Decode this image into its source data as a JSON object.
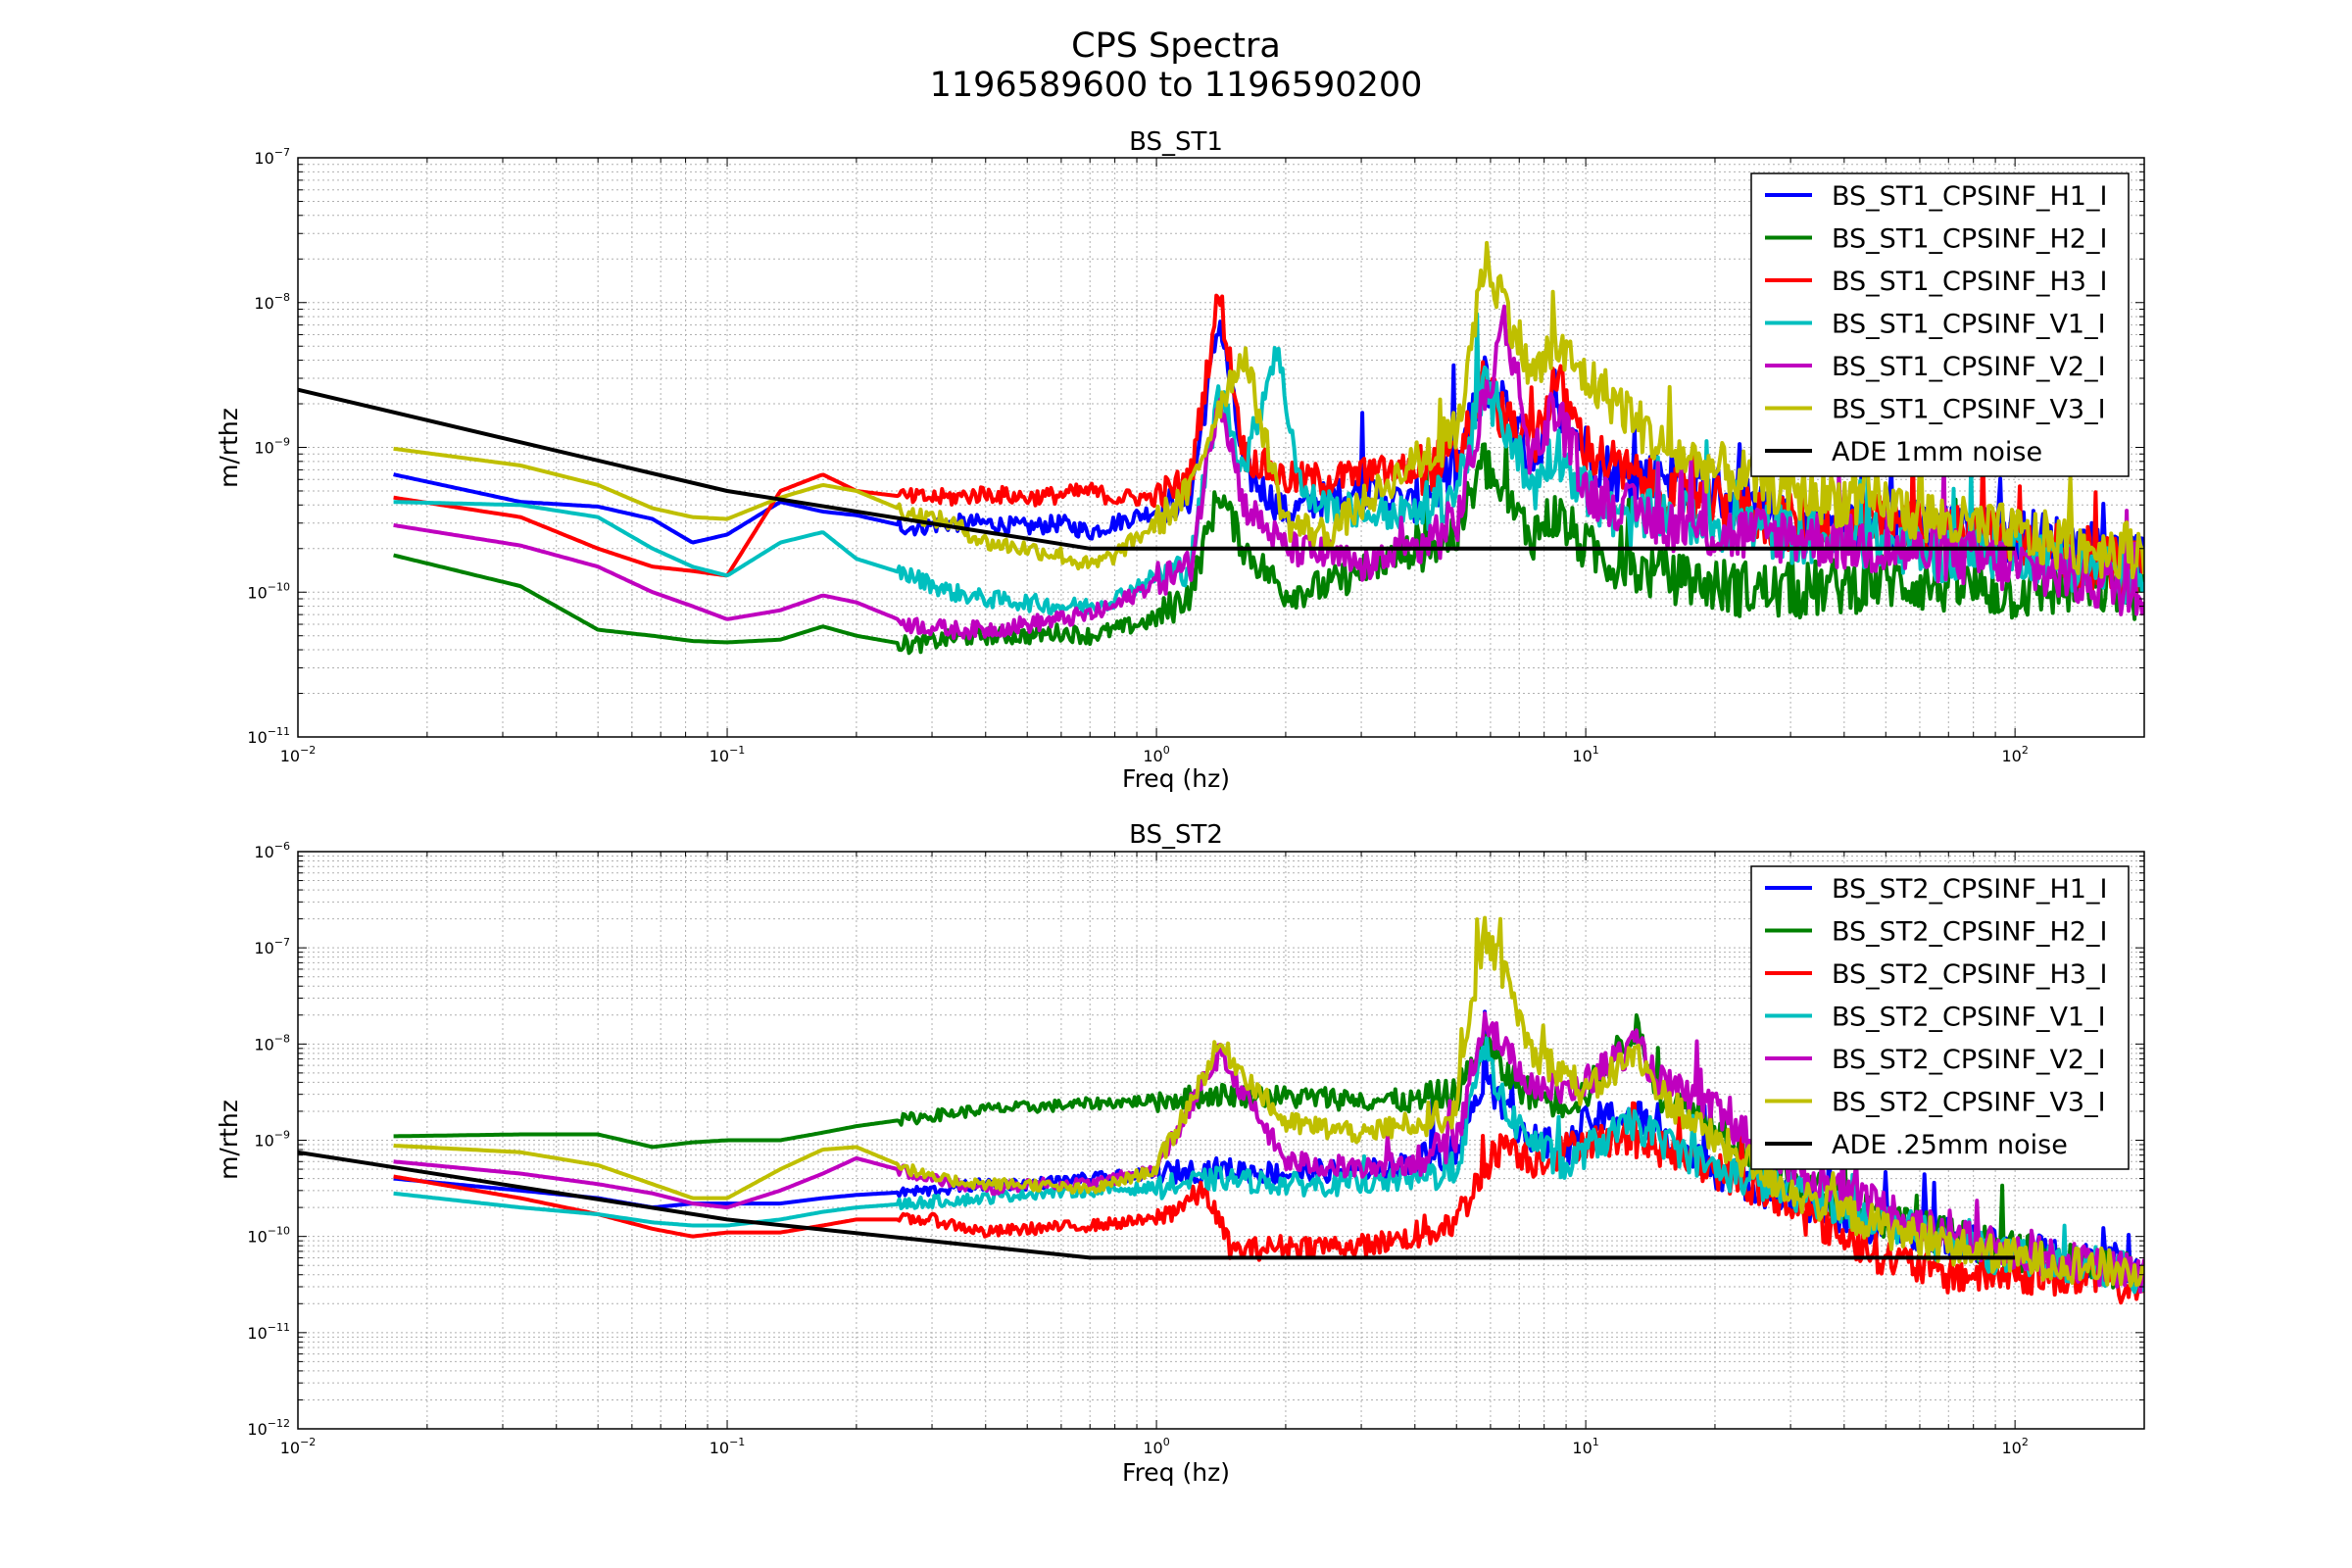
{
  "figure": {
    "title_line1": "CPS Spectra",
    "title_line2": "1196589600 to 1196590200"
  },
  "chart_data": [
    {
      "type": "line",
      "title": "BS_ST1",
      "xlabel": "Freq (hz)",
      "ylabel": "m/rthz",
      "xscale": "log",
      "yscale": "log",
      "xlim": [
        0.01,
        200
      ],
      "ylim": [
        1e-11,
        1e-07
      ],
      "grid": true,
      "legend_position": "upper right",
      "xticks": [
        "10^-2",
        "10^-1",
        "10^0",
        "10^1",
        "10^2"
      ],
      "yticks": [
        "10^-11",
        "10^-10",
        "10^-9",
        "10^-8",
        "10^-7"
      ],
      "series": [
        {
          "name": "BS_ST1_CPSINF_H1_I",
          "color": "#0000ff",
          "x": [
            0.0167,
            0.033,
            0.05,
            0.067,
            0.083,
            0.1,
            0.133,
            0.167,
            0.2,
            0.267,
            0.333,
            0.4,
            0.5,
            0.6,
            0.7,
            0.8,
            1.0,
            1.2,
            1.4,
            1.6,
            2.0,
            2.5,
            3,
            4,
            5,
            5.8,
            6.5,
            7.5,
            8.5,
            10,
            12,
            15,
            20,
            30,
            50,
            70,
            100,
            150,
            200
          ],
          "y": [
            6.5e-10,
            4.2e-10,
            3.9e-10,
            3.2e-10,
            2.2e-10,
            2.5e-10,
            4.2e-10,
            3.6e-10,
            3.4e-10,
            2.8e-10,
            3e-10,
            3e-10,
            2.8e-10,
            3e-10,
            2.6e-10,
            3e-10,
            3.7e-10,
            4.5e-10,
            8e-09,
            7e-10,
            3.5e-10,
            4.5e-10,
            5e-10,
            4e-10,
            7e-10,
            3e-09,
            2e-09,
            8e-10,
            2e-09,
            1e-09,
            6e-10,
            7e-10,
            5e-10,
            2.8e-10,
            3e-10,
            2.5e-10,
            2.5e-10,
            2e-10,
            1.5e-10
          ]
        },
        {
          "name": "BS_ST1_CPSINF_H2_I",
          "color": "#008000",
          "x": [
            0.0167,
            0.033,
            0.05,
            0.067,
            0.083,
            0.1,
            0.133,
            0.167,
            0.2,
            0.267,
            0.333,
            0.4,
            0.5,
            0.6,
            0.7,
            0.8,
            1.0,
            1.2,
            1.4,
            1.6,
            2.0,
            2.5,
            3,
            4,
            5,
            5.8,
            6.5,
            7.5,
            8.5,
            10,
            12,
            15,
            20,
            30,
            50,
            70,
            100,
            150,
            200
          ],
          "y": [
            1.8e-10,
            1.1e-10,
            5.5e-11,
            5e-11,
            4.6e-11,
            4.5e-11,
            4.7e-11,
            5.8e-11,
            5e-11,
            4.3e-11,
            4.8e-11,
            5e-11,
            5e-11,
            5.3e-11,
            5e-11,
            5.5e-11,
            6.5e-11,
            1e-10,
            5e-10,
            2e-10,
            1e-10,
            1.1e-10,
            1.4e-10,
            2e-10,
            2.5e-10,
            8e-10,
            4e-10,
            2.5e-10,
            3.5e-10,
            2e-10,
            1.5e-10,
            1.3e-10,
            1.1e-10,
            1e-10,
            1.2e-10,
            1.1e-10,
            1e-10,
            1.1e-10,
            1e-10
          ]
        },
        {
          "name": "BS_ST1_CPSINF_H3_I",
          "color": "#ff0000",
          "x": [
            0.0167,
            0.033,
            0.05,
            0.067,
            0.083,
            0.1,
            0.133,
            0.167,
            0.2,
            0.267,
            0.333,
            0.4,
            0.5,
            0.6,
            0.7,
            0.8,
            1.0,
            1.2,
            1.4,
            1.6,
            2.0,
            2.5,
            3,
            4,
            5,
            5.8,
            6.5,
            7.5,
            8.5,
            10,
            12,
            15,
            20,
            30,
            50,
            70,
            100,
            150,
            200
          ],
          "y": [
            4.5e-10,
            3.3e-10,
            2e-10,
            1.5e-10,
            1.4e-10,
            1.3e-10,
            5e-10,
            6.5e-10,
            5e-10,
            4.5e-10,
            4.5e-10,
            4.8e-10,
            4.5e-10,
            4.7e-10,
            5e-10,
            4.5e-10,
            4.5e-10,
            6e-10,
            1.2e-08,
            9e-10,
            6e-10,
            6e-10,
            6.5e-10,
            7e-10,
            8e-10,
            3e-09,
            1.5e-09,
            1e-09,
            3e-09,
            1e-09,
            7e-10,
            5e-10,
            4e-10,
            3e-10,
            3e-10,
            2.5e-10,
            2.5e-10,
            1.5e-10,
            1.5e-10
          ]
        },
        {
          "name": "BS_ST1_CPSINF_V1_I",
          "color": "#00bfbf",
          "x": [
            0.0167,
            0.033,
            0.05,
            0.067,
            0.083,
            0.1,
            0.133,
            0.167,
            0.2,
            0.267,
            0.333,
            0.4,
            0.5,
            0.6,
            0.7,
            0.8,
            1.0,
            1.2,
            1.4,
            1.6,
            1.9,
            2.2,
            2.5,
            3,
            4,
            5,
            5.8,
            6.5,
            7.5,
            8.5,
            10,
            12,
            15,
            20,
            30,
            50,
            70,
            100,
            150,
            200
          ],
          "y": [
            4.2e-10,
            4e-10,
            3.3e-10,
            2e-10,
            1.5e-10,
            1.3e-10,
            2.2e-10,
            2.6e-10,
            1.7e-10,
            1.3e-10,
            1e-10,
            9e-11,
            8.5e-11,
            8e-11,
            8e-11,
            9e-11,
            1.3e-10,
            1.5e-10,
            2.5e-09,
            7e-10,
            5e-09,
            4.5e-10,
            4e-10,
            3.5e-10,
            3.5e-10,
            5e-10,
            2.5e-09,
            1.5e-09,
            5e-10,
            1e-09,
            5e-10,
            3e-10,
            3.5e-10,
            3e-10,
            2.5e-10,
            2.2e-10,
            1.8e-10,
            2e-10,
            1.5e-10,
            1.2e-10
          ]
        },
        {
          "name": "BS_ST1_CPSINF_V2_I",
          "color": "#bf00bf",
          "x": [
            0.0167,
            0.033,
            0.05,
            0.067,
            0.083,
            0.1,
            0.133,
            0.167,
            0.2,
            0.267,
            0.333,
            0.4,
            0.5,
            0.6,
            0.7,
            0.8,
            1.0,
            1.2,
            1.4,
            1.6,
            2.0,
            2.5,
            3,
            4,
            5,
            5.8,
            6.5,
            7.5,
            8.5,
            10,
            12,
            15,
            20,
            30,
            50,
            70,
            100,
            150,
            200
          ],
          "y": [
            2.9e-10,
            2.1e-10,
            1.5e-10,
            1e-10,
            8e-11,
            6.5e-11,
            7.5e-11,
            9.5e-11,
            8.5e-11,
            6e-11,
            5.5e-11,
            5.5e-11,
            6e-11,
            6.5e-11,
            7e-11,
            8e-11,
            1.2e-10,
            1.5e-10,
            2.5e-09,
            4e-10,
            2e-10,
            1.8e-10,
            1.5e-10,
            2e-10,
            3e-10,
            2e-09,
            8e-09,
            8e-10,
            2e-09,
            5e-10,
            4e-10,
            3e-10,
            2.5e-10,
            2.5e-10,
            2e-10,
            1.8e-10,
            1.5e-10,
            1.2e-10,
            1e-10
          ]
        },
        {
          "name": "BS_ST1_CPSINF_V3_I",
          "color": "#bfbf00",
          "x": [
            0.0167,
            0.033,
            0.05,
            0.067,
            0.083,
            0.1,
            0.133,
            0.167,
            0.2,
            0.267,
            0.333,
            0.4,
            0.5,
            0.6,
            0.7,
            0.8,
            1.0,
            1.2,
            1.4,
            1.6,
            2.0,
            2.5,
            3,
            4,
            5,
            5.8,
            6.5,
            7.5,
            8.5,
            10,
            12,
            15,
            20,
            30,
            50,
            70,
            100,
            150,
            200
          ],
          "y": [
            9.8e-10,
            7.5e-10,
            5.5e-10,
            3.8e-10,
            3.3e-10,
            3.2e-10,
            4.5e-10,
            5.5e-10,
            5e-10,
            3.5e-10,
            3e-10,
            2.2e-10,
            2e-10,
            1.8e-10,
            1.5e-10,
            1.8e-10,
            3e-10,
            5e-10,
            2e-09,
            4.5e-09,
            3e-10,
            2.5e-10,
            4e-10,
            8e-10,
            1.2e-09,
            2e-08,
            1e-08,
            3e-09,
            5e-09,
            3e-09,
            2e-09,
            1e-09,
            7e-10,
            5e-10,
            4e-10,
            3e-10,
            2.5e-10,
            2e-10,
            2e-10
          ]
        },
        {
          "name": "ADE 1mm noise",
          "color": "#000000",
          "x": [
            0.01,
            0.1,
            0.7,
            100
          ],
          "y": [
            2.5e-09,
            5e-10,
            2e-10,
            2e-10
          ]
        }
      ]
    },
    {
      "type": "line",
      "title": "BS_ST2",
      "xlabel": "Freq (hz)",
      "ylabel": "m/rthz",
      "xscale": "log",
      "yscale": "log",
      "xlim": [
        0.01,
        200
      ],
      "ylim": [
        1e-12,
        1e-06
      ],
      "grid": true,
      "legend_position": "upper right",
      "xticks": [
        "10^-2",
        "10^-1",
        "10^0",
        "10^1",
        "10^2"
      ],
      "yticks": [
        "10^-12",
        "10^-11",
        "10^-10",
        "10^-9",
        "10^-8",
        "10^-7",
        "10^-6"
      ],
      "series": [
        {
          "name": "BS_ST2_CPSINF_H1_I",
          "color": "#0000ff",
          "x": [
            0.0167,
            0.033,
            0.05,
            0.067,
            0.083,
            0.1,
            0.133,
            0.167,
            0.2,
            0.3,
            0.4,
            0.5,
            0.7,
            1.0,
            1.4,
            2.0,
            3,
            4,
            5,
            5.8,
            6.5,
            7.5,
            9,
            10,
            13,
            15,
            20,
            30,
            50,
            70,
            100,
            150,
            200
          ],
          "y": [
            4e-10,
            3e-10,
            2.5e-10,
            2e-10,
            2.2e-10,
            2.2e-10,
            2.2e-10,
            2.5e-10,
            2.7e-10,
            3e-10,
            3.5e-10,
            3.5e-10,
            4e-10,
            4.5e-10,
            5e-10,
            4.5e-10,
            5e-10,
            6e-10,
            8e-10,
            5e-09,
            2e-09,
            1e-09,
            8e-10,
            1.5e-09,
            2e-09,
            1e-09,
            5e-10,
            2.5e-10,
            1.2e-10,
            1e-10,
            7e-11,
            6e-11,
            5e-11
          ]
        },
        {
          "name": "BS_ST2_CPSINF_H2_I",
          "color": "#008000",
          "x": [
            0.0167,
            0.033,
            0.05,
            0.067,
            0.083,
            0.1,
            0.133,
            0.167,
            0.2,
            0.3,
            0.4,
            0.5,
            0.7,
            1.0,
            1.4,
            2.0,
            3,
            4,
            5,
            5.8,
            6.5,
            7.5,
            9,
            10,
            13,
            15,
            20,
            30,
            50,
            70,
            100,
            150,
            200
          ],
          "y": [
            1.1e-09,
            1.15e-09,
            1.15e-09,
            8.5e-10,
            9.5e-10,
            1e-09,
            1e-09,
            1.2e-09,
            1.4e-09,
            1.8e-09,
            2.1e-09,
            2.2e-09,
            2.4e-09,
            2.6e-09,
            3e-09,
            2.8e-09,
            2.7e-09,
            2.5e-09,
            3e-09,
            1e-08,
            5e-09,
            3e-09,
            2.5e-09,
            3e-09,
            1.5e-08,
            3e-09,
            1.5e-09,
            4e-10,
            1.5e-10,
            1e-10,
            7e-11,
            5e-11,
            4e-11
          ]
        },
        {
          "name": "BS_ST2_CPSINF_H3_I",
          "color": "#ff0000",
          "x": [
            0.0167,
            0.033,
            0.05,
            0.067,
            0.083,
            0.1,
            0.133,
            0.167,
            0.2,
            0.3,
            0.4,
            0.5,
            0.7,
            1.0,
            1.3,
            1.5,
            2.0,
            3,
            4,
            5,
            5.8,
            6.5,
            7.5,
            9,
            10,
            13,
            15,
            20,
            30,
            50,
            70,
            100,
            150,
            200
          ],
          "y": [
            4.2e-10,
            2.5e-10,
            1.7e-10,
            1.2e-10,
            1e-10,
            1.1e-10,
            1.1e-10,
            1.3e-10,
            1.5e-10,
            1.5e-10,
            1.1e-10,
            1.2e-10,
            1.3e-10,
            1.5e-10,
            3e-10,
            7e-11,
            8e-11,
            8e-11,
            1e-10,
            1.5e-10,
            5e-10,
            1e-09,
            6e-10,
            8e-10,
            1e-09,
            1e-09,
            8e-10,
            5e-10,
            2e-10,
            6e-11,
            4e-11,
            4e-11,
            3.5e-11,
            3e-11
          ]
        },
        {
          "name": "BS_ST2_CPSINF_V1_I",
          "color": "#00bfbf",
          "x": [
            0.0167,
            0.033,
            0.05,
            0.067,
            0.083,
            0.1,
            0.133,
            0.167,
            0.2,
            0.3,
            0.4,
            0.5,
            0.7,
            1.0,
            1.4,
            2.0,
            3,
            4,
            5,
            5.8,
            6.5,
            7.5,
            9,
            10,
            13,
            15,
            20,
            30,
            50,
            70,
            100,
            150,
            200
          ],
          "y": [
            2.8e-10,
            2e-10,
            1.7e-10,
            1.4e-10,
            1.3e-10,
            1.3e-10,
            1.5e-10,
            1.8e-10,
            2e-10,
            2.3e-10,
            2.5e-10,
            2.8e-10,
            3e-10,
            3.2e-10,
            4e-10,
            3.5e-10,
            3.5e-10,
            4e-10,
            5e-10,
            1e-08,
            2e-09,
            1e-09,
            5e-10,
            8e-10,
            1.5e-09,
            1e-09,
            5e-10,
            3e-10,
            1.5e-10,
            8e-11,
            6e-11,
            5e-11,
            4e-11
          ]
        },
        {
          "name": "BS_ST2_CPSINF_V2_I",
          "color": "#bf00bf",
          "x": [
            0.0167,
            0.033,
            0.05,
            0.067,
            0.083,
            0.1,
            0.133,
            0.167,
            0.2,
            0.3,
            0.4,
            0.5,
            0.7,
            1.0,
            1.4,
            2.0,
            3,
            4,
            5,
            5.8,
            6.5,
            7.5,
            9,
            10,
            13,
            15,
            20,
            30,
            50,
            70,
            100,
            150,
            200
          ],
          "y": [
            6e-10,
            4.5e-10,
            3.5e-10,
            2.8e-10,
            2.2e-10,
            2e-10,
            3e-10,
            4.5e-10,
            6.5e-10,
            4e-10,
            3e-10,
            3.5e-10,
            3.5e-10,
            5e-10,
            8e-09,
            6e-10,
            5e-10,
            6e-10,
            1e-09,
            2e-08,
            8e-09,
            4e-09,
            3e-09,
            4e-09,
            1e-08,
            4e-09,
            2e-09,
            5e-10,
            2e-10,
            1e-10,
            7e-11,
            5e-11,
            4e-11
          ]
        },
        {
          "name": "BS_ST2_CPSINF_V3_I",
          "color": "#bfbf00",
          "x": [
            0.0167,
            0.033,
            0.05,
            0.067,
            0.083,
            0.1,
            0.133,
            0.167,
            0.2,
            0.3,
            0.4,
            0.5,
            0.7,
            1.0,
            1.4,
            2.0,
            3,
            4,
            5,
            5.8,
            6.5,
            7.5,
            9,
            10,
            13,
            15,
            20,
            30,
            50,
            70,
            100,
            150,
            200
          ],
          "y": [
            8.8e-10,
            7.5e-10,
            5.5e-10,
            3.5e-10,
            2.5e-10,
            2.5e-10,
            5e-10,
            8e-10,
            8.5e-10,
            4e-10,
            3.5e-10,
            3.5e-10,
            3e-10,
            5e-10,
            1e-08,
            1.5e-09,
            1.2e-09,
            1.5e-09,
            2e-09,
            1.5e-07,
            5e-08,
            8e-09,
            5e-09,
            3e-09,
            8e-09,
            3e-09,
            1e-09,
            3e-10,
            1.2e-10,
            8e-11,
            6e-11,
            5e-11,
            4e-11
          ]
        },
        {
          "name": "ADE .25mm noise",
          "color": "#000000",
          "x": [
            0.01,
            0.1,
            0.7,
            100
          ],
          "y": [
            7.5e-10,
            1.5e-10,
            6e-11,
            6e-11
          ]
        }
      ]
    }
  ]
}
